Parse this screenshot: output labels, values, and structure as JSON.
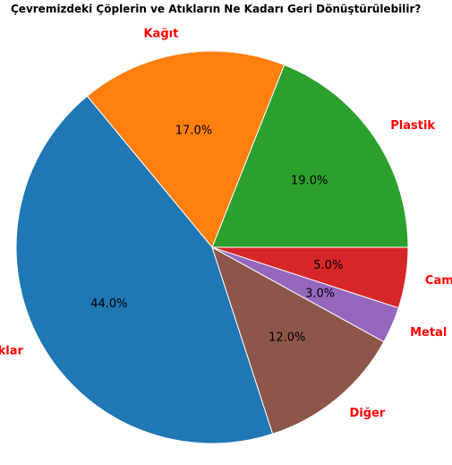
{
  "chart_data": {
    "type": "pie",
    "title": "Çevremizdeki Çöplerin ve Atıkların Ne Kadarı Geri Dönüştürülebilir?",
    "categories": [
      "Plastik",
      "Kağıt",
      "Doğal Atıklar",
      "Diğer",
      "Metal",
      "Cam"
    ],
    "values": [
      19.0,
      17.0,
      44.0,
      12.0,
      3.0,
      5.0
    ],
    "value_labels": [
      "19.0%",
      "17.0%",
      "44.0%",
      "12.0%",
      "3.0%",
      "5.0%"
    ],
    "colors": [
      "#2ca02c",
      "#ff7f0e",
      "#1f77b4",
      "#8c564b",
      "#9467bd",
      "#d62728"
    ],
    "label_color": "#ff0000",
    "start_angle_deg": 0,
    "direction": "counterclockwise",
    "legend": "none"
  }
}
